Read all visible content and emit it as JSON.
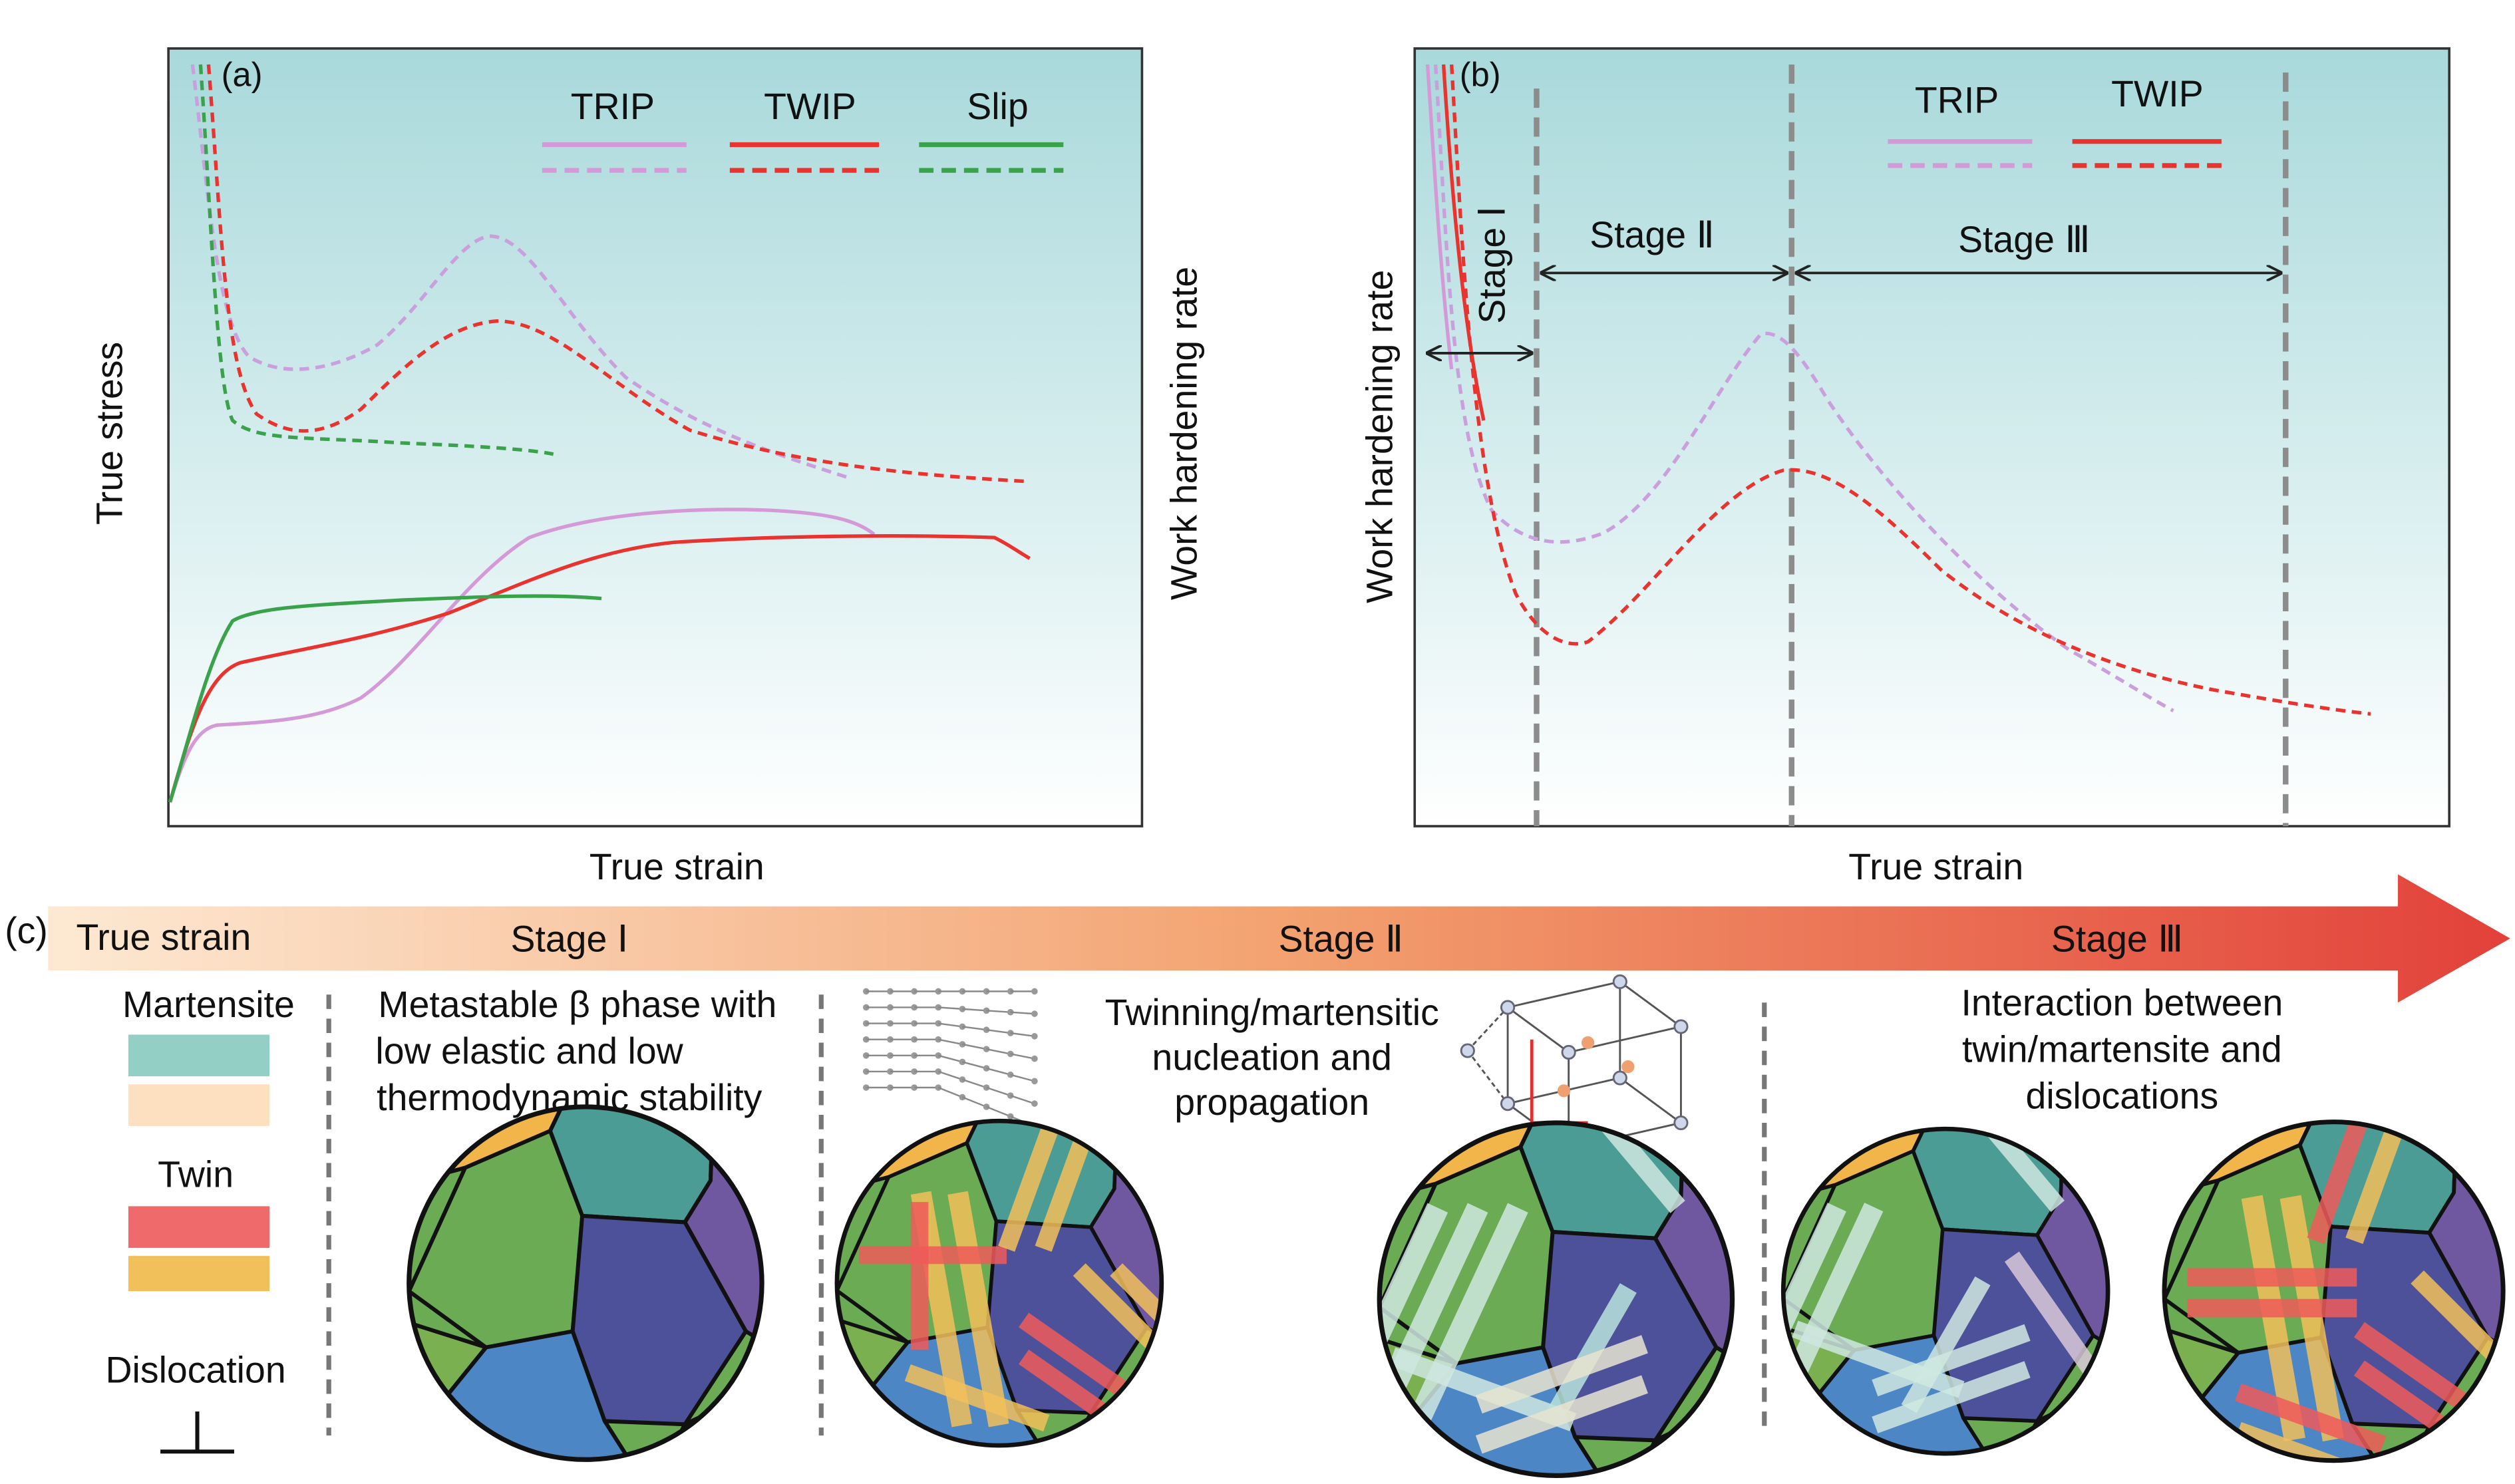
{
  "panel_a": {
    "label": "(a)",
    "y_label": "True stress",
    "y2_label": "Work hardening rate",
    "x_label": "True strain",
    "legend": [
      "TRIP",
      "TWIP",
      "Slip"
    ]
  },
  "panel_b": {
    "label": "(b)",
    "y_label": "Work hardening rate",
    "x_label": "True strain",
    "legend": [
      "TRIP",
      "TWIP"
    ],
    "stages": [
      "Stage Ⅰ",
      "Stage Ⅱ",
      "Stage Ⅲ"
    ]
  },
  "panel_c": {
    "label": "(c)",
    "arrow_label": "True strain",
    "stages": [
      "Stage Ⅰ",
      "Stage Ⅱ",
      "Stage Ⅲ"
    ],
    "legend": {
      "martensite": "Martensite",
      "twin": "Twin",
      "dislocation": "Dislocation"
    },
    "descriptions": [
      [
        "Metastable β phase with",
        "low elastic and low",
        "thermodynamic stability"
      ],
      [
        "Twinning/martensitic",
        "nucleation and",
        "propagation"
      ],
      [
        "Interaction between",
        "twin/martensite and",
        "dislocations"
      ]
    ]
  }
}
